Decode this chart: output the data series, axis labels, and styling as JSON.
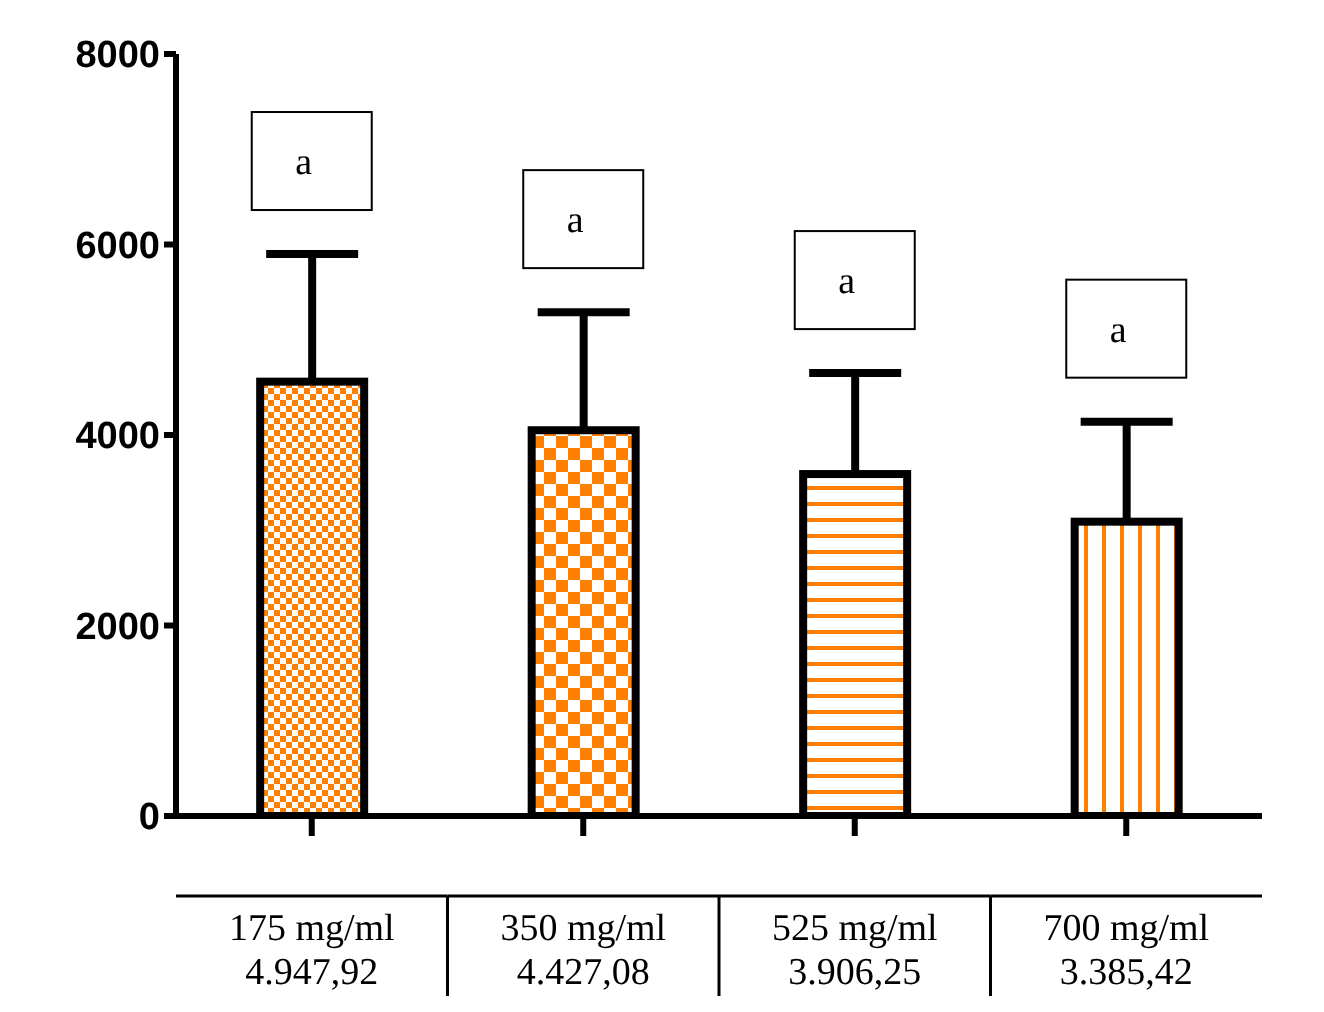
{
  "chart_data": {
    "type": "bar",
    "categories": [
      "175 mg/ml\n4.947,92",
      "350 mg/ml\n4.427,08",
      "525 mg/ml\n3.906,25",
      "700 mg/ml\n3.385,42"
    ],
    "values": [
      4560,
      4050,
      3590,
      3090
    ],
    "errors": [
      [
        4560,
        5900
      ],
      [
        4050,
        5290
      ],
      [
        3590,
        4650
      ],
      [
        3090,
        4140
      ]
    ],
    "colors": [
      "#ff8000",
      "#ff8000",
      "#ff8000",
      "#ff8000"
    ],
    "ylim": [
      0,
      8000
    ],
    "yticks": [
      0,
      2000,
      4000,
      6000,
      8000
    ],
    "grid": false,
    "legend": false,
    "annotations": [
      "a",
      "a",
      "a",
      "a"
    ]
  }
}
